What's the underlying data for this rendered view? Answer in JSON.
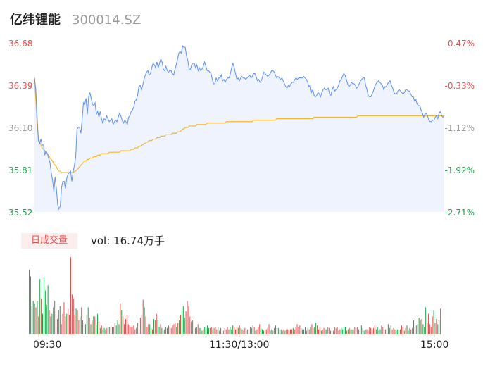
{
  "header": {
    "stock_name": "亿纬锂能",
    "stock_code": "300014.SZ"
  },
  "colors": {
    "price_line": "#5b8ff9",
    "avg_line": "#f5b731",
    "up": "#e84d4d",
    "down": "#1aa34a",
    "flat": "#999999",
    "area_fill": "#eef3fd"
  },
  "volume_panel": {
    "badge_label": "日成交量",
    "vol_text": "vol: 16.74万手"
  },
  "chart_data": {
    "type": "line",
    "subtype": "intraday-timeshare",
    "y_ticks": [
      "36.68",
      "36.39",
      "36.10",
      "35.81",
      "35.52"
    ],
    "y_pct_ticks": [
      "0.47%",
      "-0.33%",
      "-1.12%",
      "-1.92%",
      "-2.71%"
    ],
    "ylim": [
      35.52,
      36.68
    ],
    "x_ticks": [
      "09:30",
      "11:30/13:00",
      "15:00"
    ],
    "legend": "none",
    "grid": false,
    "series": [
      {
        "key": "price",
        "values": [
          36.44,
          36.36,
          36.18,
          36.01,
          35.99,
          36.02,
          35.98,
          35.98,
          35.91,
          35.94,
          35.92,
          35.89,
          35.86,
          35.79,
          35.74,
          35.66,
          35.76,
          35.68,
          35.57,
          35.54,
          35.56,
          35.69,
          35.73,
          35.73,
          35.68,
          35.75,
          35.78,
          35.79,
          35.8,
          35.73,
          35.8,
          35.84,
          35.9,
          36.09,
          36.1,
          36.1,
          36.06,
          36.16,
          36.27,
          36.26,
          36.3,
          36.19,
          36.31,
          36.34,
          36.3,
          36.26,
          36.25,
          36.27,
          36.19,
          36.21,
          36.17,
          36.21,
          36.16,
          36.13,
          36.16,
          36.15,
          36.18,
          36.16,
          36.14,
          36.15,
          36.16,
          36.12,
          36.14,
          36.15,
          36.14,
          36.17,
          36.2,
          36.18,
          36.15,
          36.13,
          36.15,
          36.14,
          36.12,
          36.17,
          36.18,
          36.21,
          36.22,
          36.24,
          36.28,
          36.29,
          36.32,
          36.38,
          36.39,
          36.36,
          36.39,
          36.43,
          36.46,
          36.48,
          36.49,
          36.46,
          36.47,
          36.51,
          36.54,
          36.53,
          36.51,
          36.55,
          36.51,
          36.54,
          36.57,
          36.55,
          36.5,
          36.49,
          36.52,
          36.49,
          36.48,
          36.49,
          36.49,
          36.47,
          36.46,
          36.5,
          36.53,
          36.57,
          36.61,
          36.62,
          36.61,
          36.66,
          36.65,
          36.65,
          36.59,
          36.56,
          36.5,
          36.5,
          36.53,
          36.54,
          36.54,
          36.51,
          36.53,
          36.49,
          36.51,
          36.49,
          36.5,
          36.52,
          36.55,
          36.52,
          36.49,
          36.49,
          36.48,
          36.47,
          36.43,
          36.4,
          36.4,
          36.44,
          36.42,
          36.44,
          36.44,
          36.46,
          36.42,
          36.43,
          36.41,
          36.43,
          36.44,
          36.44,
          36.47,
          36.51,
          36.54,
          36.51,
          36.47,
          36.43,
          36.44,
          36.42,
          36.44,
          36.45,
          36.44,
          36.44,
          36.43,
          36.44,
          36.45,
          36.46,
          36.44,
          36.45,
          36.47,
          36.47,
          36.45,
          36.42,
          36.43,
          36.41,
          36.42,
          36.45,
          36.48,
          36.47,
          36.46,
          36.45,
          36.46,
          36.47,
          36.49,
          36.49,
          36.48,
          36.46,
          36.44,
          36.45,
          36.44,
          36.43,
          36.44,
          36.42,
          36.4,
          36.38,
          36.37,
          36.39,
          36.38,
          36.4,
          36.41,
          36.41,
          36.43,
          36.44,
          36.43,
          36.44,
          36.44,
          36.44,
          36.44,
          36.45,
          36.44,
          36.43,
          36.41,
          36.38,
          36.39,
          36.34,
          36.36,
          36.32,
          36.31,
          36.32,
          36.34,
          36.33,
          36.31,
          36.34,
          36.36,
          36.37,
          36.36,
          36.36,
          36.37,
          36.33,
          36.32,
          36.36,
          36.38,
          36.35,
          36.36,
          36.37,
          36.39,
          36.42,
          36.43,
          36.45,
          36.47,
          36.46,
          36.43,
          36.4,
          36.38,
          36.39,
          36.41,
          36.4,
          36.4,
          36.39,
          36.37,
          36.38,
          36.4,
          36.42,
          36.43,
          36.44,
          36.44,
          36.39,
          36.36,
          36.32,
          36.31,
          36.31,
          36.33,
          36.35,
          36.38,
          36.4,
          36.41,
          36.42,
          36.41,
          36.4,
          36.39,
          36.36,
          36.38,
          36.38,
          36.4,
          36.41,
          36.42,
          36.39,
          36.37,
          36.34,
          36.33,
          36.33,
          36.35,
          36.36,
          36.35,
          36.34,
          36.33,
          36.34,
          36.36,
          36.36,
          36.35,
          36.35,
          36.33,
          36.31,
          36.31,
          36.28,
          36.29,
          36.26,
          36.25,
          36.25,
          36.22,
          36.2,
          36.17,
          36.19,
          36.2,
          36.18,
          36.15,
          36.14,
          36.14,
          36.15,
          36.15,
          36.17,
          36.18,
          36.16,
          36.2,
          36.21,
          36.18,
          36.17,
          36.18
        ]
      },
      {
        "key": "average",
        "values": [
          36.44,
          36.3,
          36.12,
          36.04,
          36.0,
          35.98,
          35.96,
          35.95,
          35.94,
          35.93,
          35.92,
          35.91,
          35.89,
          35.88,
          35.87,
          35.85,
          35.84,
          35.83,
          35.81,
          35.8,
          35.8,
          35.79,
          35.79,
          35.79,
          35.79,
          35.79,
          35.79,
          35.79,
          35.79,
          35.79,
          35.79,
          35.8,
          35.8,
          35.81,
          35.82,
          35.83,
          35.84,
          35.85,
          35.86,
          35.87,
          35.87,
          35.88,
          35.88,
          35.89,
          35.89,
          35.89,
          35.9,
          35.9,
          35.9,
          35.91,
          35.91,
          35.91,
          35.92,
          35.92,
          35.92,
          35.92,
          35.92,
          35.92,
          35.93,
          35.93,
          35.93,
          35.93,
          35.93,
          35.93,
          35.93,
          35.93,
          35.93,
          35.94,
          35.94,
          35.94,
          35.94,
          35.94,
          35.94,
          35.94,
          35.94,
          35.95,
          35.95,
          35.95,
          35.96,
          35.96,
          35.96,
          35.97,
          35.97,
          35.98,
          35.98,
          35.99,
          35.99,
          36.0,
          36.0,
          36.01,
          36.01,
          36.01,
          36.02,
          36.02,
          36.02,
          36.03,
          36.03,
          36.03,
          36.04,
          36.04,
          36.04,
          36.04,
          36.05,
          36.05,
          36.05,
          36.05,
          36.05,
          36.06,
          36.06,
          36.06,
          36.06,
          36.07,
          36.07,
          36.07,
          36.08,
          36.09,
          36.09,
          36.1,
          36.1,
          36.1,
          36.11,
          36.11,
          36.11,
          36.11,
          36.11,
          36.11,
          36.12,
          36.12,
          36.12,
          36.12,
          36.12,
          36.12,
          36.12,
          36.12,
          36.13,
          36.13,
          36.13,
          36.13,
          36.13,
          36.13,
          36.13,
          36.13,
          36.13,
          36.13,
          36.13,
          36.13,
          36.13,
          36.13,
          36.13,
          36.14,
          36.14,
          36.14,
          36.14,
          36.14,
          36.14,
          36.14,
          36.14,
          36.14,
          36.14,
          36.14,
          36.14,
          36.14,
          36.14,
          36.14,
          36.14,
          36.14,
          36.14,
          36.14,
          36.14,
          36.14,
          36.15,
          36.15,
          36.15,
          36.15,
          36.15,
          36.15,
          36.15,
          36.15,
          36.15,
          36.15,
          36.15,
          36.15,
          36.15,
          36.15,
          36.15,
          36.15,
          36.15,
          36.15,
          36.16,
          36.16,
          36.16,
          36.16,
          36.16,
          36.16,
          36.16,
          36.16,
          36.16,
          36.16,
          36.16,
          36.16,
          36.16,
          36.16,
          36.16,
          36.16,
          36.16,
          36.16,
          36.16,
          36.16,
          36.16,
          36.16,
          36.16,
          36.16,
          36.16,
          36.16,
          36.16,
          36.16,
          36.16,
          36.17,
          36.17,
          36.17,
          36.17,
          36.17,
          36.17,
          36.17,
          36.17,
          36.17,
          36.17,
          36.17,
          36.17,
          36.17,
          36.17,
          36.17,
          36.17,
          36.17,
          36.17,
          36.17,
          36.17,
          36.17,
          36.17,
          36.17,
          36.17,
          36.17,
          36.17,
          36.17,
          36.17,
          36.17,
          36.17,
          36.17,
          36.17,
          36.17,
          36.17,
          36.18,
          36.18,
          36.18,
          36.18,
          36.18,
          36.18,
          36.18,
          36.18,
          36.18,
          36.18,
          36.18,
          36.18,
          36.18,
          36.18,
          36.18,
          36.18,
          36.18,
          36.18,
          36.18,
          36.18,
          36.18,
          36.18,
          36.18,
          36.18,
          36.18,
          36.18,
          36.18,
          36.18,
          36.18,
          36.18,
          36.18,
          36.18,
          36.18,
          36.18,
          36.18,
          36.18,
          36.18,
          36.18,
          36.18,
          36.18,
          36.18,
          36.18,
          36.18,
          36.18,
          36.18,
          36.18,
          36.18,
          36.18,
          36.18,
          36.18,
          36.18,
          36.18,
          36.18,
          36.18,
          36.18,
          36.18,
          36.18,
          36.18,
          36.18,
          36.18,
          36.18,
          36.18,
          36.18,
          36.18,
          36.18,
          36.18,
          36.18,
          36.18
        ]
      }
    ],
    "volume": {
      "max": 6,
      "values": [
        5.0,
        4.5,
        2.2,
        2.6,
        2.4,
        2.1,
        2.6,
        1.4,
        4.3,
        2.8,
        1.6,
        4.4,
        3.4,
        2.3,
        3.8,
        1.9,
        1.4,
        1.6,
        2.1,
        2.6,
        1.6,
        1.2,
        1.9,
        2.2,
        0.8,
        1.6,
        2.5,
        1.4,
        1.6,
        2.0,
        1.5,
        6.0,
        3.1,
        2.8,
        1.5,
        2.0,
        1.9,
        1.1,
        1.4,
        2.1,
        1.1,
        0.9,
        0.8,
        1.5,
        2.1,
        1.3,
        0.8,
        1.1,
        1.4,
        1.4,
        0.7,
        1.6,
        1.0,
        0.5,
        0.7,
        0.4,
        0.5,
        0.4,
        0.5,
        0.6,
        0.6,
        0.8,
        0.6,
        0.6,
        0.9,
        0.7,
        1.1,
        0.8,
        2.4,
        1.9,
        1.4,
        0.8,
        1.2,
        1.5,
        0.8,
        0.7,
        0.6,
        0.6,
        0.7,
        0.4,
        0.5,
        0.9,
        0.7,
        1.3,
        1.5,
        2.7,
        2.1,
        1.4,
        0.6,
        0.8,
        0.8,
        0.5,
        0.4,
        1.2,
        1.1,
        1.6,
        1.1,
        0.6,
        0.8,
        0.5,
        0.3,
        0.4,
        0.6,
        0.5,
        0.7,
        0.6,
        0.5,
        0.7,
        0.8,
        0.9,
        0.6,
        0.9,
        1.1,
        1.5,
        1.9,
        2.2,
        1.3,
        1.8,
        2.6,
        2.2,
        1.4,
        1.0,
        1.1,
        0.6,
        0.5,
        0.6,
        0.8,
        0.5,
        0.5,
        0.3,
        0.4,
        0.6,
        0.5,
        0.7,
        0.5,
        0.5,
        0.6,
        0.4,
        0.5,
        0.6,
        0.4,
        0.6,
        0.3,
        0.5,
        0.4,
        0.3,
        0.5,
        0.4,
        0.6,
        0.4,
        0.6,
        0.4,
        0.7,
        0.6,
        0.4,
        0.6,
        0.5,
        0.7,
        0.5,
        0.4,
        0.3,
        0.5,
        0.3,
        0.4,
        0.4,
        0.6,
        0.5,
        0.7,
        0.6,
        0.3,
        0.4,
        0.6,
        0.8,
        0.5,
        0.4,
        0.3,
        0.3,
        0.4,
        0.5,
        0.8,
        0.3,
        0.4,
        0.3,
        0.5,
        0.7,
        0.5,
        0.5,
        0.4,
        0.4,
        0.3,
        0.4,
        0.3,
        0.4,
        0.4,
        0.3,
        0.4,
        0.4,
        0.5,
        0.4,
        0.6,
        0.8,
        0.6,
        0.7,
        0.5,
        0.4,
        0.4,
        0.6,
        0.3,
        0.5,
        0.4,
        0.6,
        0.8,
        0.5,
        0.6,
        0.9,
        0.7,
        0.4,
        0.6,
        0.3,
        0.4,
        0.5,
        0.4,
        0.4,
        0.6,
        0.5,
        0.3,
        0.5,
        0.3,
        0.6,
        0.5,
        0.6,
        0.3,
        0.4,
        0.5,
        0.4,
        0.6,
        0.6,
        0.3,
        0.4,
        0.5,
        0.4,
        0.4,
        0.4,
        0.6,
        0.5,
        0.6,
        0.4,
        0.3,
        0.7,
        0.5,
        0.3,
        0.4,
        0.4,
        0.3,
        0.6,
        0.5,
        0.4,
        0.5,
        0.7,
        0.4,
        0.6,
        0.3,
        0.4,
        0.7,
        0.6,
        0.4,
        0.4,
        0.5,
        0.8,
        0.5,
        0.7,
        0.4,
        0.5,
        0.4,
        0.3,
        0.4,
        0.3,
        0.4,
        0.7,
        0.6,
        0.3,
        0.5,
        0.7,
        0.3,
        0.5,
        0.4,
        0.5,
        1.1,
        0.9,
        0.7,
        0.8,
        1.3,
        1.1,
        1.2,
        0.8,
        0.6,
        2.1,
        0.9,
        1.6,
        0.8,
        0.6,
        1.4,
        1.9,
        0.9,
        1.2,
        0.8,
        1.1,
        2.0
      ]
    }
  }
}
